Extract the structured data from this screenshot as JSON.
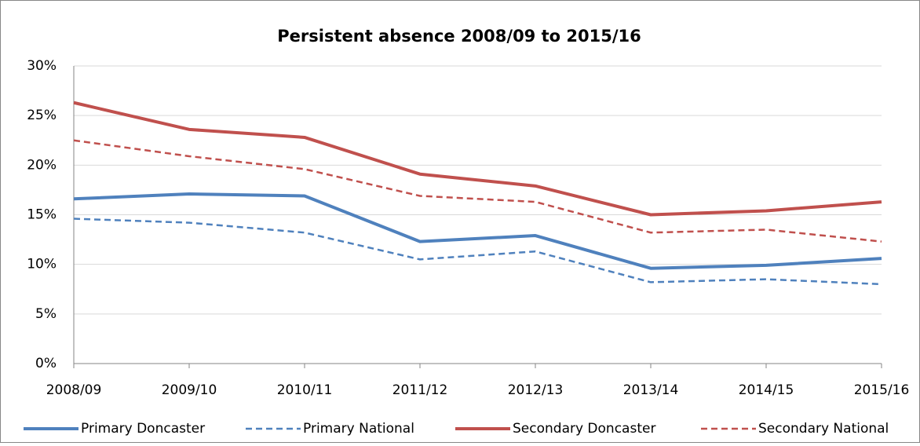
{
  "chart_data": {
    "type": "line",
    "title": "Persistent absence 2008/09 to 2015/16",
    "categories": [
      "2008/09",
      "2009/10",
      "2010/11",
      "2011/12",
      "2012/13",
      "2013/14",
      "2014/15",
      "2015/16"
    ],
    "series": [
      {
        "name": "Primary Doncaster",
        "color": "#4f81bd",
        "line_style": "solid",
        "values": [
          16.6,
          17.1,
          16.9,
          12.3,
          12.9,
          9.6,
          9.9,
          10.6
        ]
      },
      {
        "name": "Primary National",
        "color": "#4f81bd",
        "line_style": "dashed",
        "values": [
          14.6,
          14.2,
          13.2,
          10.5,
          11.3,
          8.2,
          8.5,
          8.0
        ]
      },
      {
        "name": "Secondary Doncaster",
        "color": "#c0504d",
        "line_style": "solid",
        "values": [
          26.3,
          23.6,
          22.8,
          19.1,
          17.9,
          15.0,
          15.4,
          16.3
        ]
      },
      {
        "name": "Secondary National",
        "color": "#c0504d",
        "line_style": "dashed",
        "values": [
          22.5,
          20.9,
          19.6,
          16.9,
          16.3,
          13.2,
          13.5,
          12.3
        ]
      }
    ],
    "ylim": [
      0,
      30
    ],
    "yticks": [
      {
        "value": 0,
        "label": "0%"
      },
      {
        "value": 5,
        "label": "5%"
      },
      {
        "value": 10,
        "label": "10%"
      },
      {
        "value": 15,
        "label": "15%"
      },
      {
        "value": 20,
        "label": "20%"
      },
      {
        "value": 25,
        "label": "25%"
      },
      {
        "value": 30,
        "label": "30%"
      }
    ],
    "grid": true,
    "legend": "bottom"
  }
}
